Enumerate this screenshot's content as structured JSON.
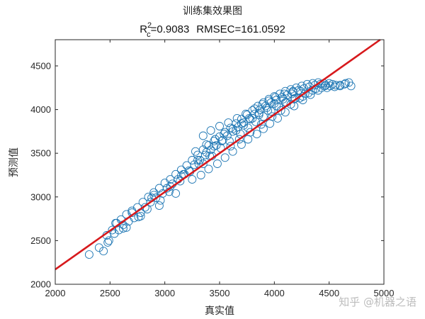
{
  "chart_data": {
    "type": "scatter",
    "title": "训练集效果图",
    "subtitle": {
      "r2_prefix": "R",
      "r2_sup": "2",
      "r2_sub": "c",
      "r2_value": "=0.9083",
      "rmse": "RMSEC=161.0592"
    },
    "xlabel": "真实值",
    "ylabel": "预测值",
    "xlim": [
      2000,
      5000
    ],
    "ylim": [
      2000,
      4800
    ],
    "xticks": [
      2000,
      2500,
      3000,
      3500,
      4000,
      4500,
      5000
    ],
    "yticks": [
      2000,
      2500,
      3000,
      3500,
      4000,
      4500
    ],
    "grid": false,
    "legend": "none",
    "fit_line": {
      "x": [
        2000,
        5000
      ],
      "y": [
        2170,
        4830
      ]
    },
    "series": [
      {
        "marker": "open-circle",
        "x": [
          2310,
          2400,
          2440,
          2470,
          2490,
          2520,
          2540,
          2560,
          2580,
          2600,
          2620,
          2650,
          2670,
          2700,
          2720,
          2750,
          2780,
          2800,
          2820,
          2850,
          2870,
          2900,
          2920,
          2950,
          2980,
          3000,
          3020,
          3050,
          3070,
          3100,
          3120,
          3150,
          3170,
          3200,
          3220,
          3250,
          3270,
          3300,
          3320,
          3350,
          3370,
          3400,
          3420,
          3450,
          3470,
          3500,
          3520,
          3550,
          3570,
          3600,
          3620,
          3650,
          3670,
          3700,
          3720,
          3750,
          3770,
          3800,
          3820,
          3850,
          3870,
          3900,
          3920,
          3950,
          3970,
          4000,
          4020,
          4050,
          4070,
          4100,
          4120,
          4150,
          4170,
          4200,
          4220,
          4250,
          4270,
          4300,
          4320,
          4350,
          4370,
          4400,
          4420,
          4450,
          4470,
          4500,
          4530,
          4560,
          4600,
          4640,
          4680,
          4700,
          2650,
          2780,
          2950,
          3100,
          3250,
          3330,
          3400,
          3480,
          3550,
          3620,
          3700,
          3760,
          3840,
          3900,
          3960,
          4030,
          4100,
          4180,
          4260,
          4330,
          4400,
          4480,
          4550,
          2550,
          2700,
          2880,
          3050,
          3180,
          3350,
          3430,
          3600,
          3680,
          3780,
          3880,
          3980,
          4060,
          4150,
          4230,
          4310,
          4380,
          4460,
          2900,
          3150,
          3300,
          3380,
          3450,
          3530,
          3650,
          3720,
          3800,
          3860,
          3930,
          4000,
          4080,
          4160,
          4240,
          2480,
          2620,
          2760,
          2840,
          2960,
          3040,
          3140,
          3230,
          3310,
          3410,
          3510,
          3590,
          3690,
          3760,
          3830,
          3900,
          3970,
          4040,
          4110,
          4190,
          4280,
          4350,
          4430,
          4510,
          4600,
          4650,
          3350,
          3420,
          3500,
          3580,
          3660,
          3740,
          3820,
          3890,
          3950,
          4010,
          4090,
          4170,
          3280,
          3380,
          3460,
          3540,
          3620,
          3700,
          3780,
          3860,
          3940,
          4020,
          4100,
          4180,
          4260
        ],
        "y": [
          2340,
          2420,
          2380,
          2560,
          2500,
          2620,
          2580,
          2700,
          2620,
          2740,
          2680,
          2800,
          2720,
          2840,
          2760,
          2880,
          2820,
          2940,
          2880,
          3000,
          2940,
          3050,
          2990,
          3100,
          3040,
          3160,
          3100,
          3200,
          3150,
          3260,
          3200,
          3310,
          3260,
          3360,
          3300,
          3420,
          3370,
          3480,
          3420,
          3540,
          3480,
          3590,
          3540,
          3640,
          3590,
          3690,
          3640,
          3740,
          3700,
          3790,
          3750,
          3840,
          3800,
          3890,
          3850,
          3940,
          3900,
          3990,
          3950,
          4040,
          4000,
          4080,
          4040,
          4120,
          4080,
          4150,
          4110,
          4180,
          4140,
          4210,
          4170,
          4230,
          4200,
          4250,
          4220,
          4270,
          4240,
          4290,
          4260,
          4300,
          4280,
          4310,
          4290,
          4300,
          4280,
          4300,
          4290,
          4280,
          4270,
          4290,
          4310,
          4270,
          2650,
          2780,
          2900,
          3040,
          3200,
          3250,
          3320,
          3380,
          3450,
          3520,
          3600,
          3660,
          3720,
          3780,
          3840,
          3900,
          3970,
          4040,
          4110,
          4170,
          4220,
          4250,
          4260,
          2700,
          2820,
          2990,
          3120,
          3260,
          3380,
          3470,
          3580,
          3660,
          3740,
          3830,
          3920,
          3990,
          4060,
          4130,
          4190,
          4240,
          4270,
          3020,
          3240,
          3420,
          3510,
          3580,
          3650,
          3760,
          3820,
          3900,
          3960,
          4020,
          4070,
          4120,
          4180,
          4210,
          2480,
          2640,
          2770,
          2860,
          2960,
          3060,
          3180,
          3290,
          3380,
          3470,
          3560,
          3640,
          3720,
          3790,
          3860,
          3920,
          3980,
          4030,
          4080,
          4130,
          4180,
          4220,
          4250,
          4270,
          4280,
          4300,
          3700,
          3760,
          3810,
          3850,
          3900,
          3950,
          4010,
          4060,
          4100,
          4140,
          4180,
          4210,
          3520,
          3600,
          3660,
          3720,
          3780,
          3840,
          3890,
          3940,
          3990,
          4040,
          4080,
          4120,
          4150
        ]
      }
    ]
  },
  "watermark": "知乎 @机器之语",
  "colors": {
    "marker": "#1f77b4",
    "fit_line": "#d7191c",
    "axes": "#262626",
    "watermark": "#bdbdbd"
  }
}
